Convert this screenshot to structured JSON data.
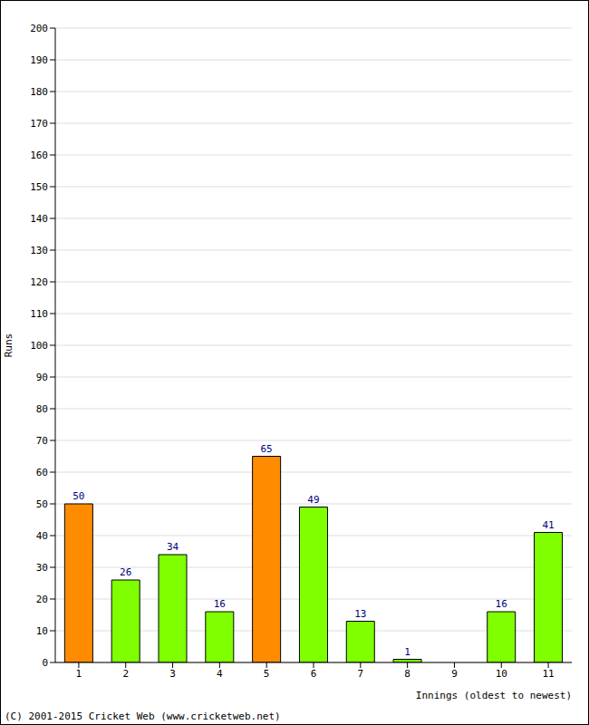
{
  "chart_data": {
    "type": "bar",
    "categories": [
      "1",
      "2",
      "3",
      "4",
      "5",
      "6",
      "7",
      "8",
      "9",
      "10",
      "11"
    ],
    "values": [
      50,
      26,
      34,
      16,
      65,
      49,
      13,
      1,
      0,
      16,
      41
    ],
    "colors": [
      "#ff8c00",
      "#7fff00",
      "#7fff00",
      "#7fff00",
      "#ff8c00",
      "#7fff00",
      "#7fff00",
      "#7fff00",
      "#7fff00",
      "#7fff00",
      "#7fff00"
    ],
    "xlabel": "Innings (oldest to newest)",
    "ylabel": "Runs",
    "ylim": [
      0,
      200
    ],
    "yticks": [
      0,
      10,
      20,
      30,
      40,
      50,
      60,
      70,
      80,
      90,
      100,
      110,
      120,
      130,
      140,
      150,
      160,
      170,
      180,
      190,
      200
    ],
    "grid": true,
    "data_labels": true,
    "annotation": "(C) 2001-2015 Cricket Web (www.cricketweb.net)"
  }
}
